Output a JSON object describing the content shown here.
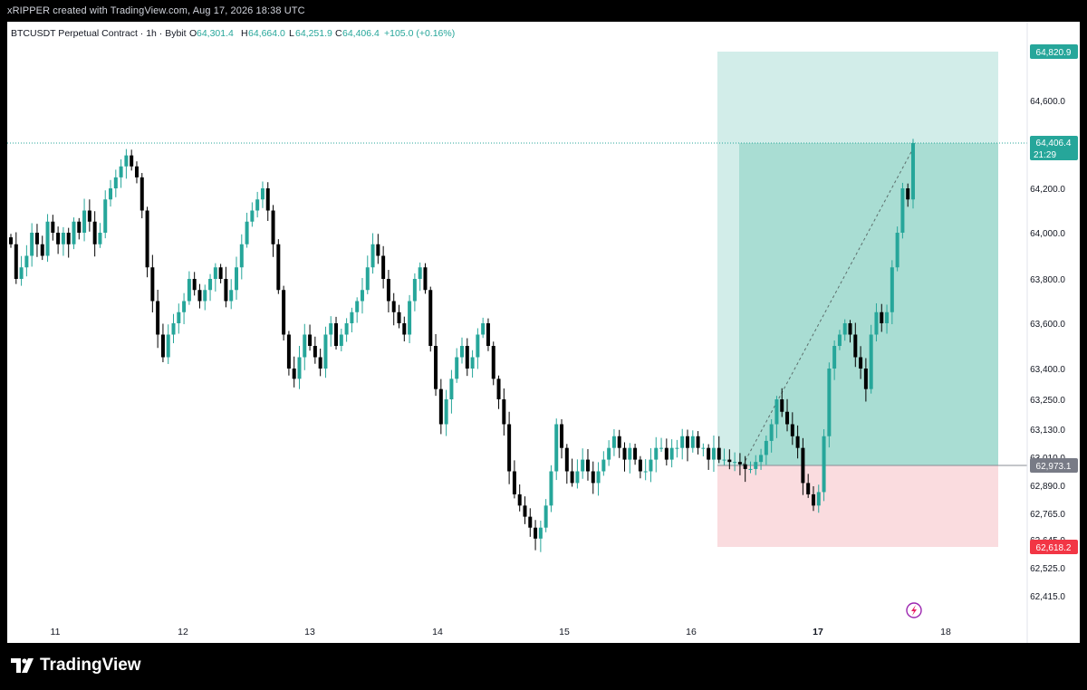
{
  "header": {
    "caption": "xRIPPER created with TradingView.com, Aug 17, 2026 18:38 UTC"
  },
  "footer": {
    "logo_text": "TradingView"
  },
  "colors": {
    "up": "#26a69a",
    "down": "#000000",
    "profit_zone": "#26a69a",
    "loss_zone": "#f7525f",
    "last_price_badge": "#26a69a",
    "stop_badge": "#f23645",
    "entry_badge": "#787b86"
  },
  "chart_data": {
    "type": "candlestick",
    "symbol_title": "BTCUSDT Perpetual Contract · 1h · Bybit",
    "ohlc_text": {
      "o_label": "O",
      "o_value": "64,301.4",
      "h_label": "H",
      "h_value": "64,664.0",
      "l_label": "L",
      "l_value": "64,251.9",
      "c_label": "C",
      "c_value": "64,406.4",
      "change": "+105.0 (+0.16%)"
    },
    "y_axis_ticks": [
      "64,600.0",
      "64,200.0",
      "64,000.0",
      "63,800.0",
      "63,600.0",
      "63,400.0",
      "63,250.0",
      "63,130.0",
      "63,010.0",
      "62,890.0",
      "62,765.0",
      "62,645.0",
      "62,525.0",
      "62,415.0"
    ],
    "x_axis_ticks": [
      "11",
      "12",
      "13",
      "14",
      "15",
      "16",
      "17",
      "18"
    ],
    "x_axis_bold": "17",
    "badges": {
      "take_profit": "64,820.9",
      "last_price": "64,406.4",
      "countdown": "21:29",
      "entry": "62,973.1",
      "stop_loss": "62,618.2"
    },
    "position": {
      "side": "long",
      "take_profit": 64820.9,
      "entry": 62973.1,
      "stop_loss": 62618.2,
      "current": 64406.4
    },
    "approx_closes": [
      63950,
      63800,
      63850,
      63900,
      64000,
      63950,
      63900,
      64050,
      64000,
      63950,
      64000,
      63950,
      64050,
      64000,
      64100,
      64050,
      63950,
      64000,
      64150,
      64200,
      64250,
      64300,
      64350,
      64300,
      64250,
      64100,
      63850,
      63700,
      63550,
      63450,
      63550,
      63600,
      63650,
      63700,
      63800,
      63750,
      63700,
      63750,
      63800,
      63850,
      63800,
      63700,
      63750,
      63850,
      63950,
      64050,
      64100,
      64150,
      64200,
      64100,
      63950,
      63750,
      63550,
      63400,
      63350,
      63450,
      63550,
      63500,
      63450,
      63400,
      63550,
      63600,
      63500,
      63550,
      63600,
      63650,
      63700,
      63750,
      63850,
      63950,
      63900,
      63800,
      63700,
      63650,
      63600,
      63550,
      63700,
      63800,
      63850,
      63750,
      63500,
      63300,
      63150,
      63250,
      63350,
      63450,
      63500,
      63400,
      63450,
      63550,
      63600,
      63500,
      63350,
      63250,
      63150,
      62950,
      62850,
      62800,
      62750,
      62700,
      62650,
      62700,
      62800,
      62950,
      63150,
      63050,
      62950,
      62900,
      62950,
      63000,
      62950,
      62900,
      62950,
      63000,
      63050,
      63100,
      63050,
      63000,
      63050,
      63000,
      62950,
      62950,
      63000,
      63050,
      63050,
      63000,
      63050,
      63050,
      63100,
      63050,
      63100,
      63050,
      63050,
      63000,
      63050,
      63000,
      63000,
      62990,
      62990,
      62980,
      62960,
      62960,
      62990,
      63020,
      63080,
      63150,
      63250,
      63200,
      63150,
      63100,
      63050,
      62900,
      62850,
      62800,
      62860,
      63100,
      63400,
      63500,
      63550,
      63600,
      63550,
      63450,
      63400,
      63300,
      63550,
      63650,
      63600,
      63650,
      63850,
      64000,
      64200,
      64150,
      64406.4
    ]
  }
}
